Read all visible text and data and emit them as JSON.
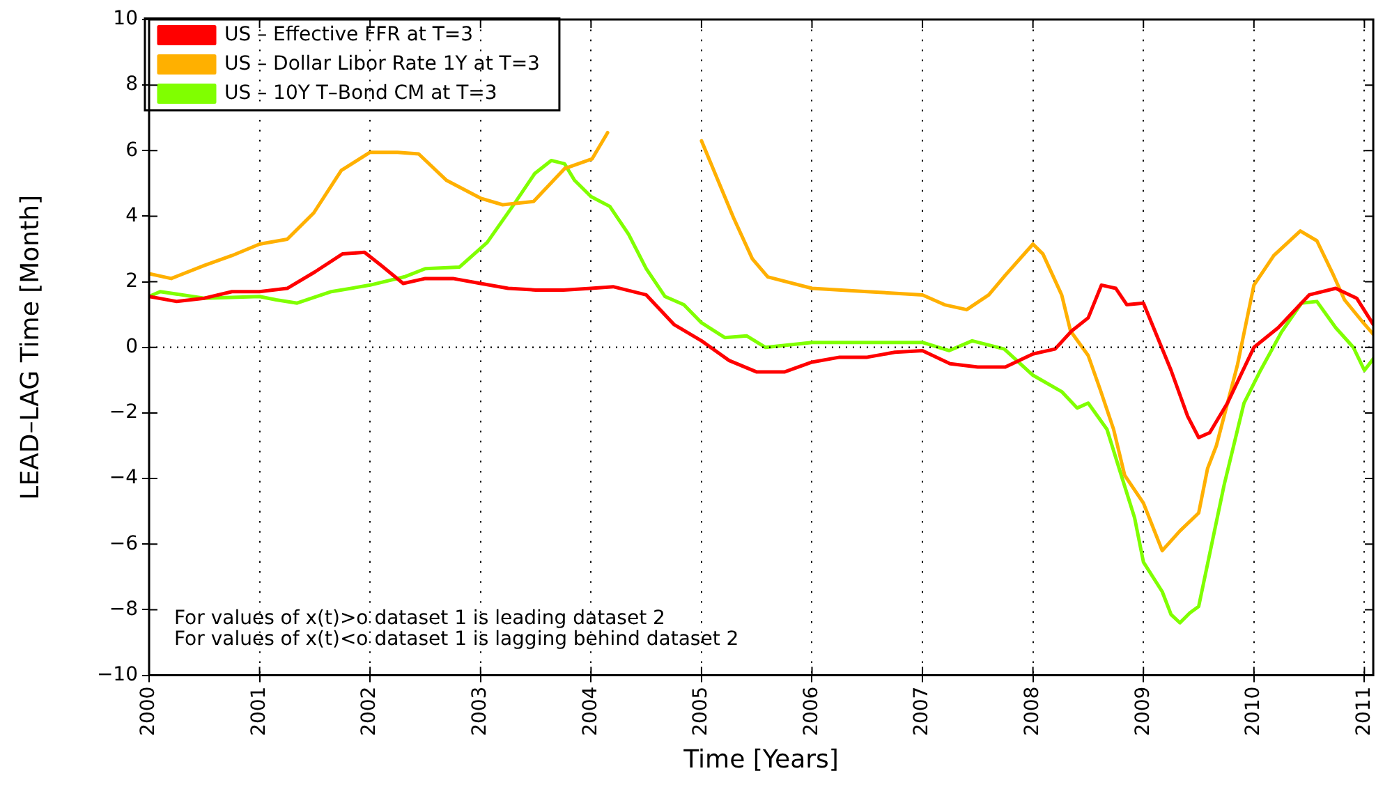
{
  "chart_data": {
    "type": "line",
    "xlabel": "Time [Years]",
    "ylabel": "LEAD–LAG Time [Month]",
    "xlim": [
      2000,
      2011.08
    ],
    "ylim": [
      -10,
      10
    ],
    "xticks": [
      2000,
      2001,
      2002,
      2003,
      2004,
      2005,
      2006,
      2007,
      2008,
      2009,
      2010,
      2011
    ],
    "yticks": [
      -10,
      -8,
      -6,
      -4,
      -2,
      0,
      2,
      4,
      6,
      8,
      10
    ],
    "grid": "x",
    "legend": "top left",
    "line_style": "solid",
    "marker": "none",
    "ref_lines": [
      {
        "axis": "y",
        "value": 0,
        "line_style": "dotted",
        "color": "#000000"
      }
    ],
    "annotations": [
      "For values of x(t)>o dataset 1 is leading dataset 2",
      "For values of x(t)<o dataset 1 is lagging behind dataset 2"
    ],
    "series": [
      {
        "name": "US – Effective FFR at T=3",
        "color": "#ff0000",
        "x": [
          2000,
          2000.25,
          2000.5,
          2000.75,
          2001,
          2001.25,
          2001.5,
          2001.75,
          2001.95,
          2002.1,
          2002.3,
          2002.5,
          2002.75,
          2003,
          2003.25,
          2003.5,
          2003.75,
          2004,
          2004.2,
          2004.5,
          2004.75,
          2005,
          2005.25,
          2005.5,
          2005.75,
          2006,
          2006.25,
          2006.5,
          2006.75,
          2007,
          2007.25,
          2007.5,
          2007.75,
          2008,
          2008.2,
          2008.35,
          2008.5,
          2008.62,
          2008.75,
          2008.85,
          2009,
          2009.25,
          2009.4,
          2009.5,
          2009.6,
          2009.76,
          2010,
          2010.22,
          2010.5,
          2010.74,
          2010.93,
          2011.08
        ],
        "values": [
          1.55,
          1.4,
          1.5,
          1.7,
          1.7,
          1.8,
          2.3,
          2.85,
          2.9,
          2.5,
          1.95,
          2.1,
          2.1,
          1.95,
          1.8,
          1.75,
          1.75,
          1.8,
          1.85,
          1.6,
          0.7,
          0.2,
          -0.4,
          -0.75,
          -0.75,
          -0.45,
          -0.3,
          -0.3,
          -0.15,
          -0.1,
          -0.5,
          -0.6,
          -0.6,
          -0.2,
          -0.05,
          0.5,
          0.9,
          1.9,
          1.8,
          1.3,
          1.35,
          -0.7,
          -2.1,
          -2.75,
          -2.6,
          -1.7,
          0,
          0.6,
          1.6,
          1.8,
          1.5,
          0.7
        ]
      },
      {
        "name": "US – Dollar Libor Rate 1Y at T=3",
        "color": "#ffb000",
        "x": [
          2000,
          2000.2,
          2000.5,
          2000.75,
          2001,
          2001.25,
          2001.49,
          2001.74,
          2002,
          2002.25,
          2002.44,
          2002.69,
          2003,
          2003.2,
          2003.48,
          2003.76,
          2004.01,
          2004.15,
          2004.5,
          2005,
          2005.29,
          2005.46,
          2005.6,
          2006,
          2006.5,
          2007,
          2007.2,
          2007.4,
          2007.6,
          2007.75,
          2008,
          2008.09,
          2008.26,
          2008.34,
          2008.5,
          2008.61,
          2008.73,
          2008.83,
          2009,
          2009.17,
          2009.33,
          2009.5,
          2009.58,
          2009.66,
          2009.85,
          2010,
          2010.18,
          2010.42,
          2010.57,
          2010.72,
          2010.82,
          2010.99,
          2011.08
        ],
        "values": [
          2.25,
          2.1,
          2.5,
          2.8,
          3.15,
          3.3,
          4.1,
          5.4,
          5.95,
          5.95,
          5.9,
          5.1,
          4.55,
          4.35,
          4.45,
          5.45,
          5.75,
          6.55,
          null,
          6.3,
          3.95,
          2.7,
          2.15,
          1.8,
          1.7,
          1.6,
          1.3,
          1.15,
          1.6,
          2.2,
          3.15,
          2.85,
          1.6,
          0.5,
          -0.25,
          -1.3,
          -2.5,
          -3.9,
          -4.75,
          -6.2,
          -5.6,
          -5.05,
          -3.7,
          -3,
          -0.55,
          1.9,
          2.8,
          3.55,
          3.25,
          2.2,
          1.45,
          0.75,
          0.4
        ]
      },
      {
        "name": "US – 10Y T–Bond CM at T=3",
        "color": "#80ff00",
        "x": [
          2000,
          2000.1,
          2000.5,
          2001,
          2001.15,
          2001.34,
          2001.65,
          2002,
          2002.31,
          2002.5,
          2002.81,
          2003.06,
          2003.31,
          2003.49,
          2003.64,
          2003.76,
          2003.85,
          2004,
          2004.17,
          2004.34,
          2004.5,
          2004.67,
          2004.84,
          2005,
          2005.21,
          2005.41,
          2005.58,
          2006,
          2006.5,
          2007,
          2007.24,
          2007.45,
          2007.74,
          2008,
          2008.26,
          2008.4,
          2008.5,
          2008.67,
          2008.79,
          2008.92,
          2009,
          2009.17,
          2009.25,
          2009.33,
          2009.42,
          2009.5,
          2009.73,
          2009.91,
          2010.06,
          2010.25,
          2010.43,
          2010.57,
          2010.74,
          2010.9,
          2011,
          2011.08
        ],
        "values": [
          1.55,
          1.7,
          1.5,
          1.55,
          1.45,
          1.35,
          1.7,
          1.9,
          2.15,
          2.4,
          2.45,
          3.2,
          4.4,
          5.3,
          5.7,
          5.6,
          5.1,
          4.6,
          4.3,
          3.45,
          2.4,
          1.55,
          1.3,
          0.75,
          0.3,
          0.35,
          0,
          0.15,
          0.15,
          0.15,
          -0.1,
          0.2,
          -0.05,
          -0.85,
          -1.35,
          -1.85,
          -1.7,
          -2.5,
          -3.8,
          -5.2,
          -6.55,
          -7.45,
          -8.15,
          -8.4,
          -8.1,
          -7.9,
          -4.2,
          -1.7,
          -0.7,
          0.47,
          1.35,
          1.4,
          0.6,
          0,
          -0.7,
          -0.35
        ]
      }
    ]
  }
}
